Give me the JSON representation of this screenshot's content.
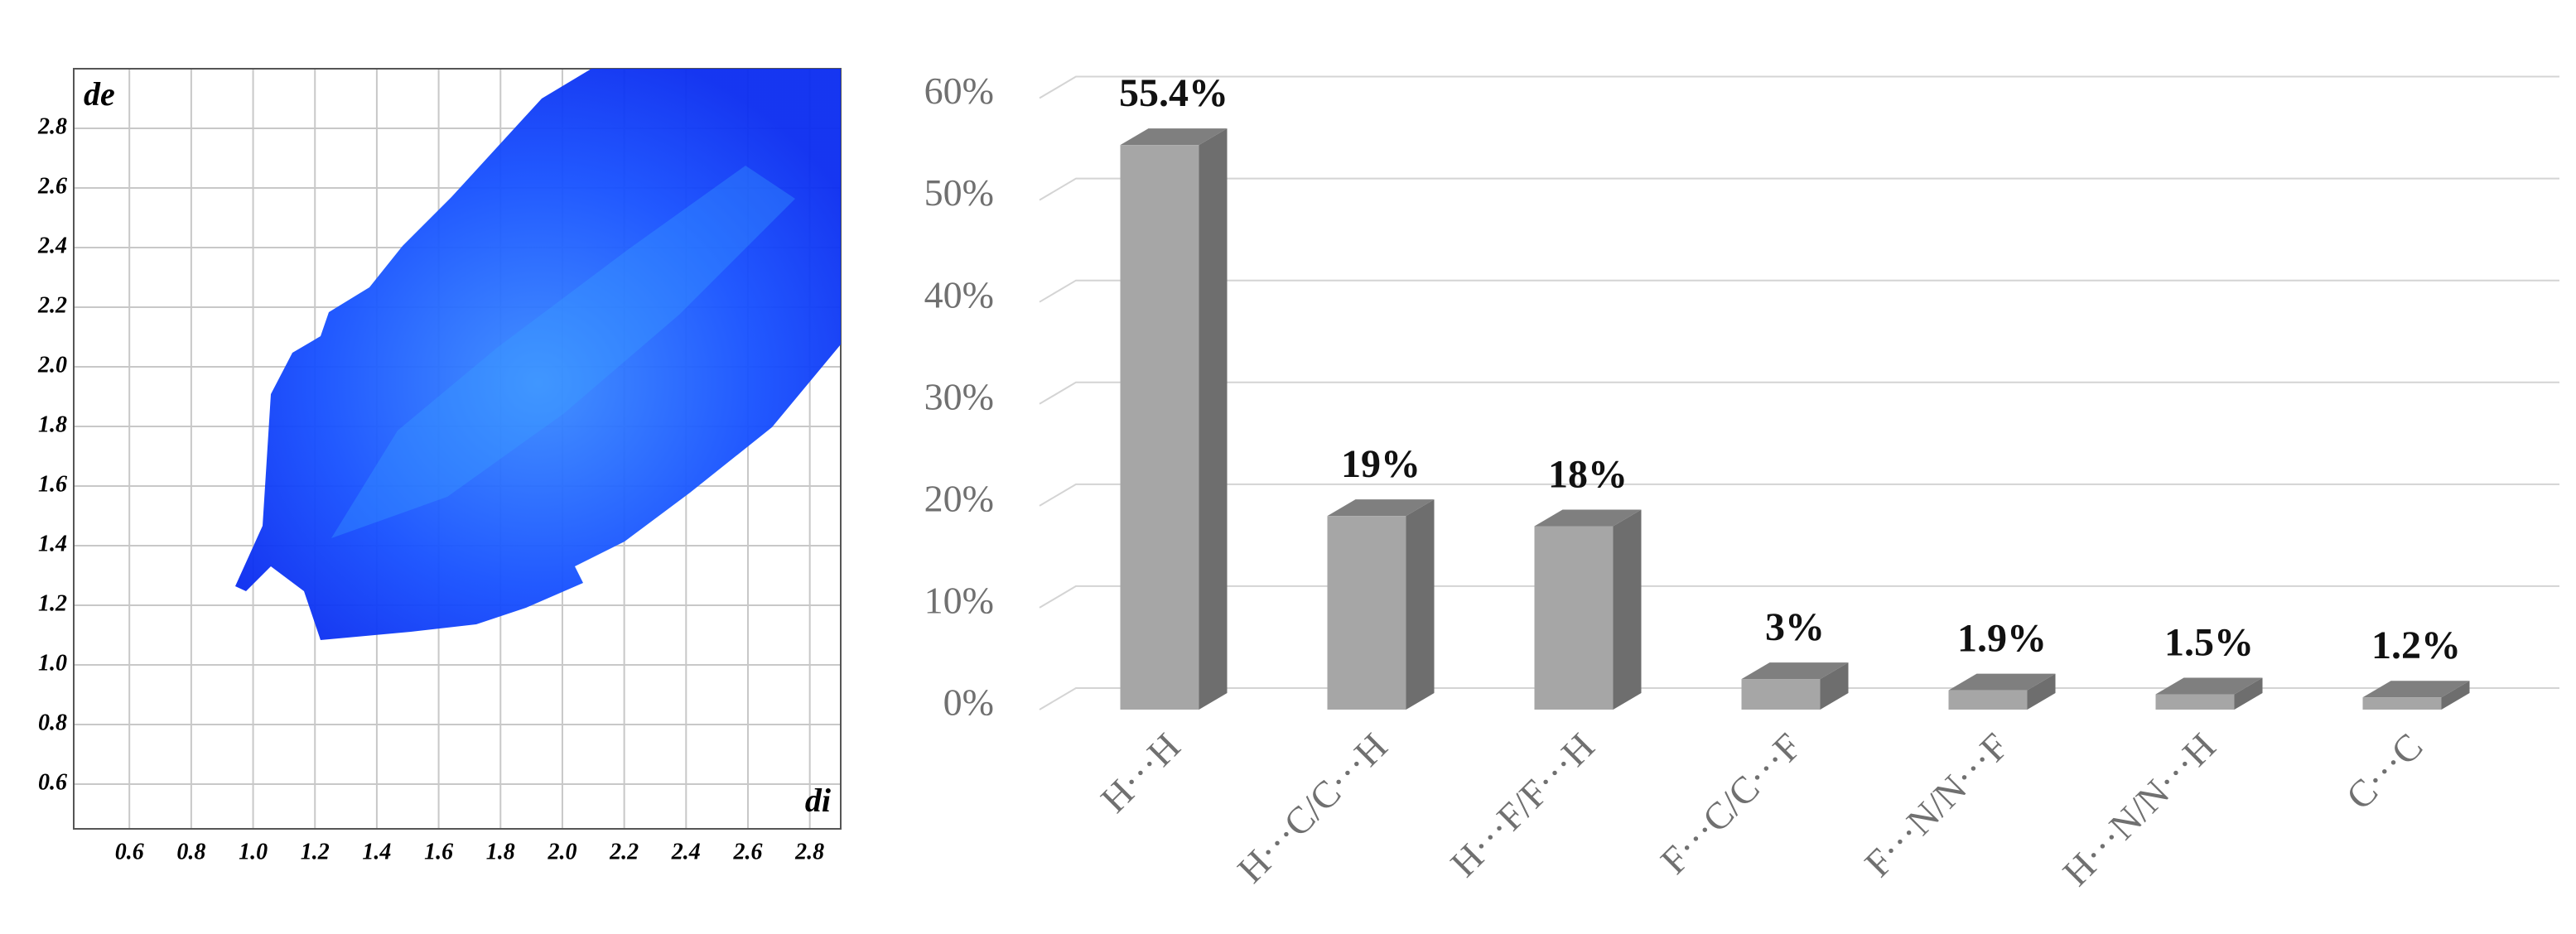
{
  "chart_data": [
    {
      "type": "fingerprint",
      "xlabel": "di",
      "ylabel": "de",
      "xlim": [
        0.42,
        2.9
      ],
      "ylim": [
        0.45,
        3.0
      ],
      "xticks": [
        0.6,
        0.8,
        {
          "value": 1,
          "label": "1.0"
        },
        1.2,
        1.4,
        1.6,
        1.8,
        {
          "value": 2,
          "label": "2.0"
        },
        2.2,
        2.4,
        2.6,
        2.8
      ],
      "yticks": [
        0.6,
        0.8,
        {
          "value": 1,
          "label": "1.0"
        },
        1.2,
        1.4,
        1.6,
        1.8,
        {
          "value": 2,
          "label": "2.0"
        },
        2.2,
        2.4,
        2.6,
        2.8
      ],
      "grid": true
    },
    {
      "type": "bar3d",
      "categories": [
        "H···H",
        "H···C/C···H",
        "H···F/F···H",
        "F···C/C···F",
        "F···N/N···F",
        "H···N/N···H",
        "C···C"
      ],
      "values": [
        55.4,
        19,
        18,
        3,
        1.9,
        1.5,
        1.2
      ],
      "value_labels": [
        "55.4%",
        "19%",
        "18%",
        "3%",
        "1.9%",
        "1.5%",
        "1.2%"
      ],
      "color": "#a6a6a6",
      "ylim": [
        0,
        65
      ],
      "yticks": [
        {
          "value": 0,
          "label": "0%"
        },
        {
          "value": 10,
          "label": "10%"
        },
        {
          "value": 20,
          "label": "20%"
        },
        {
          "value": 30,
          "label": "30%"
        },
        {
          "value": 40,
          "label": "40%"
        },
        {
          "value": 50,
          "label": "50%"
        },
        {
          "value": 60,
          "label": "60%"
        }
      ],
      "grid": true
    }
  ]
}
